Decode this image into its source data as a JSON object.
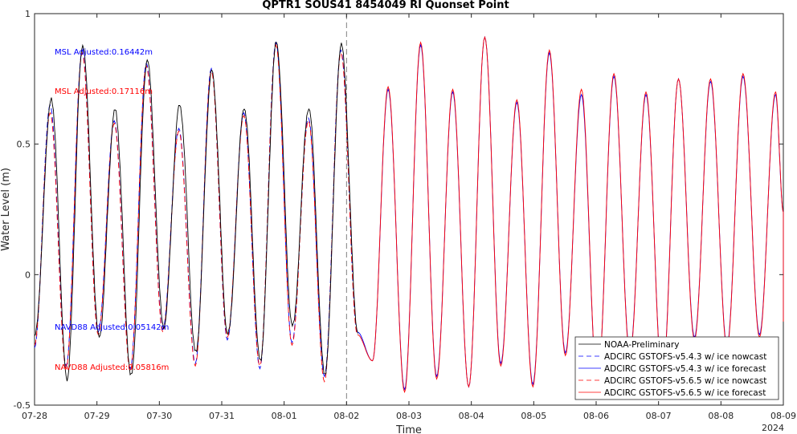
{
  "chart_data": {
    "type": "line",
    "title": "QPTR1 SOUS41 8454049 RI Quonset Point",
    "xlabel": "Time",
    "ylabel": "Water Level (m)",
    "x_start": "2024-07-28T00:00",
    "x_end": "2024-08-09T00:00",
    "ylim": [
      -0.5,
      1
    ],
    "yticks": [
      -0.5,
      0,
      0.5,
      1
    ],
    "ytick_labels": [
      "-0.5",
      "0",
      "0.5",
      "1"
    ],
    "xticks": [
      "07-28",
      "07-29",
      "07-30",
      "07-31",
      "08-01",
      "08-02",
      "08-03",
      "08-04",
      "08-05",
      "08-06",
      "08-07",
      "08-08",
      "08-09"
    ],
    "year_label": "2024",
    "grid": false,
    "legend_position": "bottom-right",
    "nowcast_end": "2024-08-02T00:00",
    "annotations": [
      {
        "text": "MSL Adjusted:0.16442m",
        "color": "#0000ff"
      },
      {
        "text": "MSL Adjusted:0.17116m",
        "color": "#ff0000"
      },
      {
        "text": "NAVD88 Adjusted:0.05142m",
        "color": "#0000ff"
      },
      {
        "text": "NAVD88 Adjusted:0.05816m",
        "color": "#ff0000"
      }
    ],
    "series": [
      {
        "name": "NOAA-Preliminary",
        "color": "#000000",
        "style": "solid",
        "extrema": [
          [
            "07-28 00:00",
            -0.24
          ],
          [
            "07-28 06:30",
            0.67
          ],
          [
            "07-28 12:30",
            -0.4
          ],
          [
            "07-28 18:30",
            0.88
          ],
          [
            "07-29 00:50",
            -0.24
          ],
          [
            "07-29 07:00",
            0.63
          ],
          [
            "07-29 13:10",
            -0.39
          ],
          [
            "07-29 19:20",
            0.82
          ],
          [
            "07-30 01:40",
            -0.2
          ],
          [
            "07-30 07:50",
            0.65
          ],
          [
            "07-30 14:00",
            -0.3
          ],
          [
            "07-30 20:10",
            0.78
          ],
          [
            "07-31 02:20",
            -0.23
          ],
          [
            "07-31 08:40",
            0.64
          ],
          [
            "07-31 14:50",
            -0.33
          ],
          [
            "07-31 21:00",
            0.89
          ],
          [
            "08-01 03:10",
            -0.2
          ],
          [
            "08-01 09:30",
            0.64
          ],
          [
            "08-01 15:40",
            -0.38
          ],
          [
            "08-01 22:00",
            0.88
          ],
          [
            "08-02 04:20",
            -0.22
          ]
        ]
      },
      {
        "name": "ADCIRC GSTOFS-v5.4.3 w/ ice nowcast",
        "color": "#0000ff",
        "style": "dashed",
        "extrema": [
          [
            "07-28 00:00",
            -0.28
          ],
          [
            "07-28 06:00",
            0.65
          ],
          [
            "07-28 12:10",
            -0.35
          ],
          [
            "07-28 18:20",
            0.86
          ],
          [
            "07-29 00:30",
            -0.22
          ],
          [
            "07-29 06:40",
            0.59
          ],
          [
            "07-29 12:50",
            -0.36
          ],
          [
            "07-29 19:00",
            0.81
          ],
          [
            "07-30 01:20",
            -0.21
          ],
          [
            "07-30 07:30",
            0.56
          ],
          [
            "07-30 13:50",
            -0.34
          ],
          [
            "07-30 20:00",
            0.79
          ],
          [
            "07-31 02:10",
            -0.25
          ],
          [
            "07-31 08:30",
            0.62
          ],
          [
            "07-31 14:40",
            -0.36
          ],
          [
            "07-31 20:50",
            0.89
          ],
          [
            "08-01 03:00",
            -0.26
          ],
          [
            "08-01 09:20",
            0.6
          ],
          [
            "08-01 15:30",
            -0.39
          ],
          [
            "08-01 21:50",
            0.86
          ],
          [
            "08-02 04:10",
            -0.22
          ]
        ]
      },
      {
        "name": "ADCIRC GSTOFS-v5.4.3 w/ ice forecast",
        "color": "#0000ff",
        "style": "solid",
        "extrema": [
          [
            "08-02 04:10",
            -0.22
          ],
          [
            "08-02 10:00",
            -0.33
          ],
          [
            "08-02 16:00",
            0.71
          ],
          [
            "08-02 22:20",
            -0.44
          ],
          [
            "08-03 04:30",
            0.88
          ],
          [
            "08-03 10:40",
            -0.39
          ],
          [
            "08-03 16:50",
            0.7
          ],
          [
            "08-03 23:00",
            -0.43
          ],
          [
            "08-04 05:10",
            0.91
          ],
          [
            "08-04 11:20",
            -0.34
          ],
          [
            "08-04 17:30",
            0.66
          ],
          [
            "08-04 23:40",
            -0.42
          ],
          [
            "08-05 06:00",
            0.85
          ],
          [
            "08-05 12:10",
            -0.3
          ],
          [
            "08-05 18:20",
            0.69
          ],
          [
            "08-06 00:30",
            -0.43
          ],
          [
            "08-06 06:50",
            0.76
          ],
          [
            "08-06 13:00",
            -0.3
          ],
          [
            "08-06 19:10",
            0.69
          ],
          [
            "08-07 01:30",
            -0.4
          ],
          [
            "08-07 07:40",
            0.75
          ],
          [
            "08-07 13:50",
            -0.24
          ],
          [
            "08-07 20:00",
            0.74
          ],
          [
            "08-08 02:20",
            -0.27
          ],
          [
            "08-08 08:30",
            0.76
          ],
          [
            "08-08 14:50",
            -0.23
          ],
          [
            "08-08 21:00",
            0.69
          ],
          [
            "08-09 03:30",
            -0.17
          ],
          [
            "08-09 00:00",
            0.24
          ]
        ]
      },
      {
        "name": "ADCIRC GSTOFS-v5.6.5 w/ ice nowcast",
        "color": "#ff0000",
        "style": "dashed",
        "extrema": [
          [
            "07-28 00:00",
            -0.27
          ],
          [
            "07-28 06:00",
            0.62
          ],
          [
            "07-28 12:10",
            -0.36
          ],
          [
            "07-28 18:20",
            0.85
          ],
          [
            "07-29 00:30",
            -0.23
          ],
          [
            "07-29 06:40",
            0.58
          ],
          [
            "07-29 12:50",
            -0.37
          ],
          [
            "07-29 19:00",
            0.8
          ],
          [
            "07-30 01:20",
            -0.22
          ],
          [
            "07-30 07:30",
            0.55
          ],
          [
            "07-30 13:50",
            -0.35
          ],
          [
            "07-30 20:00",
            0.78
          ],
          [
            "07-31 02:10",
            -0.24
          ],
          [
            "07-31 08:30",
            0.61
          ],
          [
            "07-31 14:40",
            -0.35
          ],
          [
            "07-31 20:50",
            0.88
          ],
          [
            "08-01 03:00",
            -0.27
          ],
          [
            "08-01 09:20",
            0.59
          ],
          [
            "08-01 15:30",
            -0.41
          ],
          [
            "08-01 21:50",
            0.85
          ],
          [
            "08-02 04:10",
            -0.23
          ]
        ]
      },
      {
        "name": "ADCIRC GSTOFS-v5.6.5 w/ ice forecast",
        "color": "#ff0000",
        "style": "solid",
        "extrema": [
          [
            "08-02 04:10",
            -0.23
          ],
          [
            "08-02 10:00",
            -0.33
          ],
          [
            "08-02 16:00",
            0.72
          ],
          [
            "08-02 22:20",
            -0.45
          ],
          [
            "08-03 04:30",
            0.89
          ],
          [
            "08-03 10:40",
            -0.4
          ],
          [
            "08-03 16:50",
            0.71
          ],
          [
            "08-03 23:00",
            -0.43
          ],
          [
            "08-04 05:10",
            0.91
          ],
          [
            "08-04 11:20",
            -0.35
          ],
          [
            "08-04 17:30",
            0.67
          ],
          [
            "08-04 23:40",
            -0.43
          ],
          [
            "08-05 06:00",
            0.86
          ],
          [
            "08-05 12:10",
            -0.31
          ],
          [
            "08-05 18:20",
            0.71
          ],
          [
            "08-06 00:30",
            -0.43
          ],
          [
            "08-06 06:50",
            0.77
          ],
          [
            "08-06 13:00",
            -0.31
          ],
          [
            "08-06 19:10",
            0.7
          ],
          [
            "08-07 01:30",
            -0.41
          ],
          [
            "08-07 07:40",
            0.75
          ],
          [
            "08-07 13:50",
            -0.25
          ],
          [
            "08-07 20:00",
            0.75
          ],
          [
            "08-08 02:20",
            -0.28
          ],
          [
            "08-08 08:30",
            0.77
          ],
          [
            "08-08 14:50",
            -0.24
          ],
          [
            "08-08 21:00",
            0.7
          ],
          [
            "08-09 03:30",
            -0.18
          ],
          [
            "08-09 00:00",
            0.24
          ]
        ]
      }
    ]
  }
}
